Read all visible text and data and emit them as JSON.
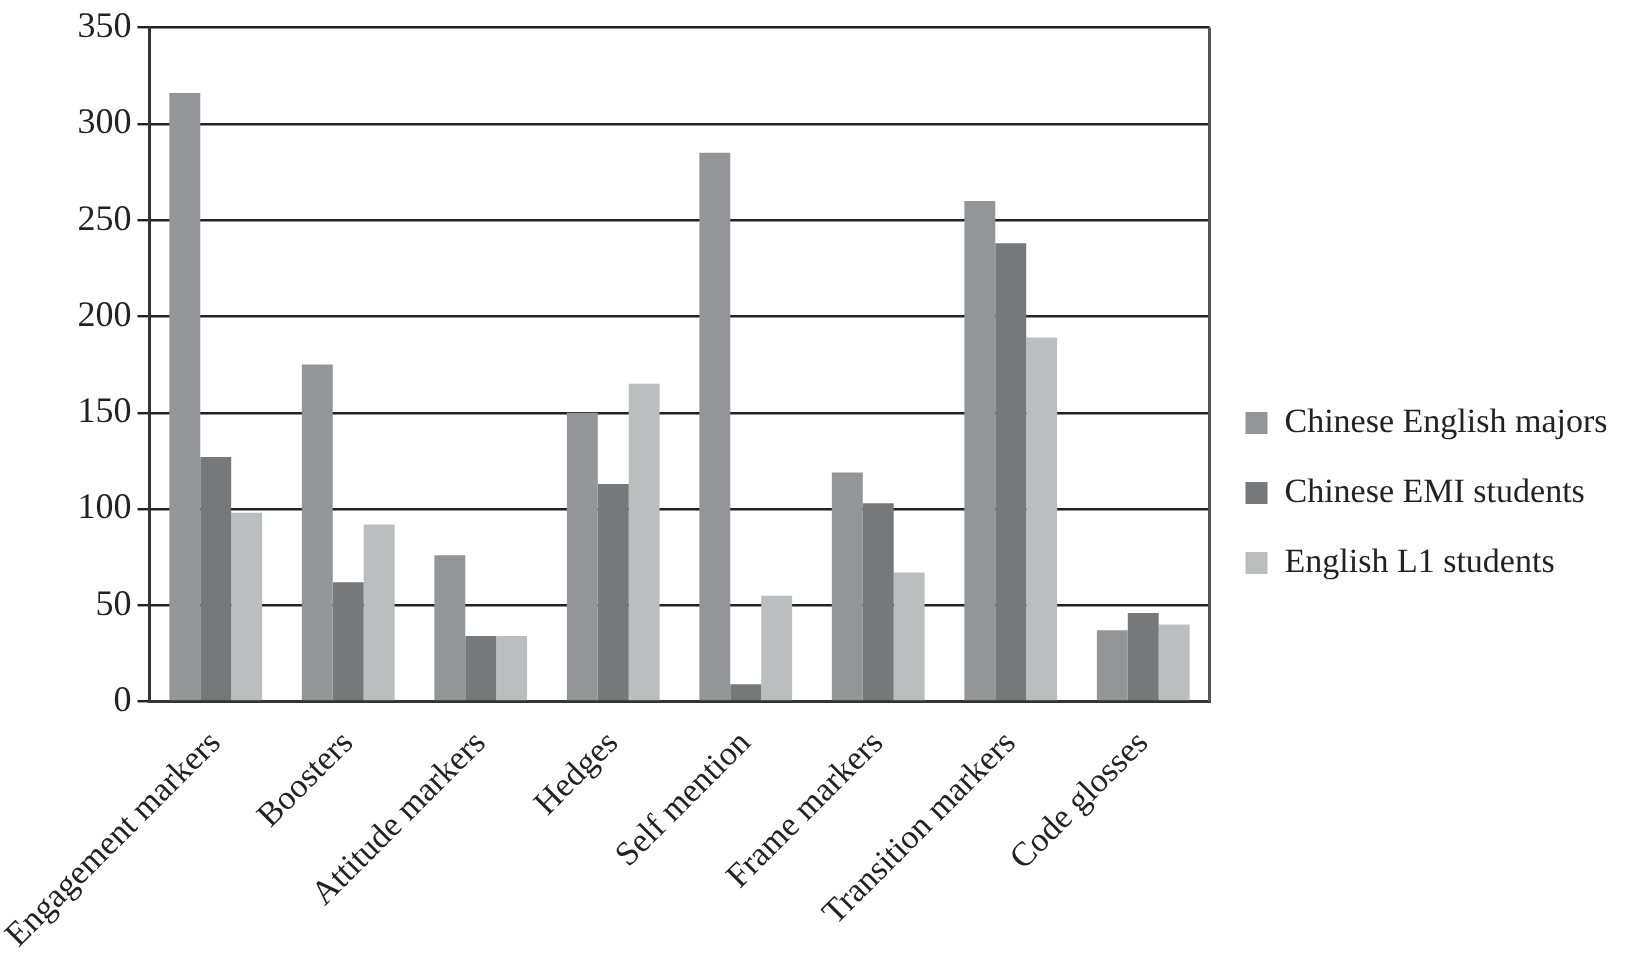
{
  "chart_data": {
    "type": "bar",
    "categories": [
      "Engagement markers",
      "Boosters",
      "Attitude markers",
      "Hedges",
      "Self mention",
      "Frame markers",
      "Transition markers",
      "Code glosses"
    ],
    "series": [
      {
        "name": "Chinese English majors",
        "color": "#939598",
        "values": [
          316,
          175,
          76,
          150,
          285,
          119,
          260,
          37
        ]
      },
      {
        "name": "Chinese EMI students",
        "color": "#77787b",
        "values": [
          127,
          62,
          34,
          113,
          9,
          103,
          238,
          46
        ]
      },
      {
        "name": "English L1 students",
        "color": "#bbbdbf",
        "values": [
          98,
          92,
          34,
          165,
          55,
          67,
          189,
          40
        ]
      }
    ],
    "ylim": [
      0,
      350
    ],
    "yticks": [
      0,
      50,
      100,
      150,
      200,
      250,
      300,
      350
    ],
    "grid": "y",
    "legend": "right"
  }
}
